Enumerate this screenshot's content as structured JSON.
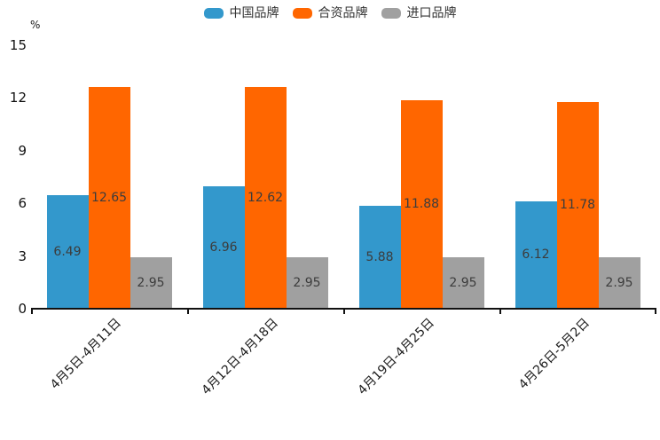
{
  "chart": {
    "unit_label": "%"
  },
  "chart_data": {
    "type": "bar",
    "title": "",
    "categories": [
      "4月5日-4月11日",
      "4月12日-4月18日",
      "4月19日-4月25日",
      "4月26日-5月2日"
    ],
    "series": [
      {
        "name": "中国品牌",
        "color": "#3398CC",
        "values": [
          6.49,
          6.96,
          5.88,
          6.12
        ]
      },
      {
        "name": "合资品牌",
        "color": "#FF6600",
        "values": [
          12.65,
          12.62,
          11.88,
          11.78
        ]
      },
      {
        "name": "进口品牌",
        "color": "#A0A0A0",
        "values": [
          2.95,
          2.95,
          2.95,
          2.95
        ]
      }
    ],
    "xlabel": "",
    "ylabel": "%",
    "ylim": [
      0,
      15
    ],
    "yticks": [
      0,
      3,
      6,
      9,
      12,
      15
    ],
    "grid": false,
    "legend_position": "top",
    "value_labels": true,
    "value_label_color": "#3c3c3c",
    "axis_color": "#111111",
    "background_color": "#ffffff"
  }
}
